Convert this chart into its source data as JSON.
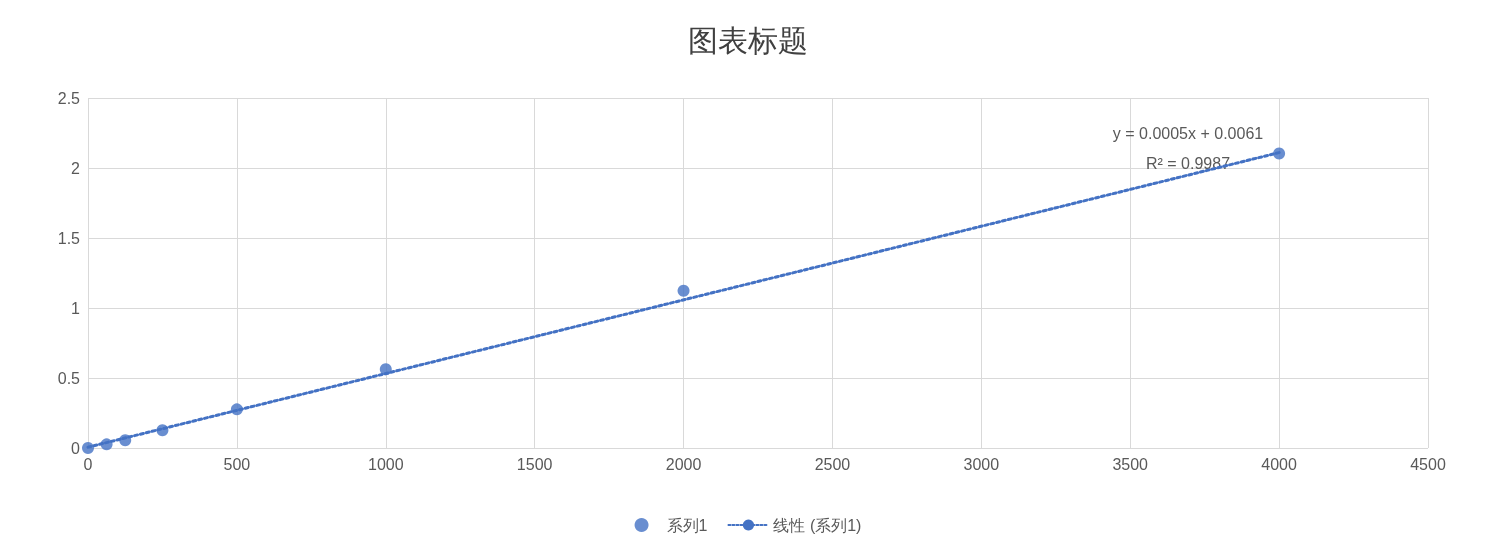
{
  "chart_data": {
    "type": "scatter",
    "title": "图表标题",
    "xlim": [
      0,
      4500
    ],
    "xticks": [
      0,
      500,
      1000,
      1500,
      2000,
      2500,
      3000,
      3500,
      4000,
      4500
    ],
    "ylim": [
      0,
      2.5
    ],
    "yticks": [
      0,
      0.5,
      1,
      1.5,
      2,
      2.5
    ],
    "grid": true,
    "legend": "bottom",
    "series": [
      {
        "name": "系列1",
        "marker": "circle",
        "color": "#4472c4",
        "x": [
          0,
          62.5,
          125,
          250,
          500,
          1000,
          2000,
          4000
        ],
        "values": [
          0,
          0.026,
          0.055,
          0.127,
          0.276,
          0.563,
          1.123,
          2.104
        ]
      },
      {
        "name": "线性 (系列1)",
        "type": "line",
        "marker": "none",
        "line_style": "dotted",
        "color": "#4472c4",
        "x": [
          0,
          4000
        ],
        "values": [
          0.006,
          2.11
        ]
      }
    ],
    "annotations": [
      "y = 0.0005x + 0.0061",
      "R² = 0.9987"
    ]
  }
}
